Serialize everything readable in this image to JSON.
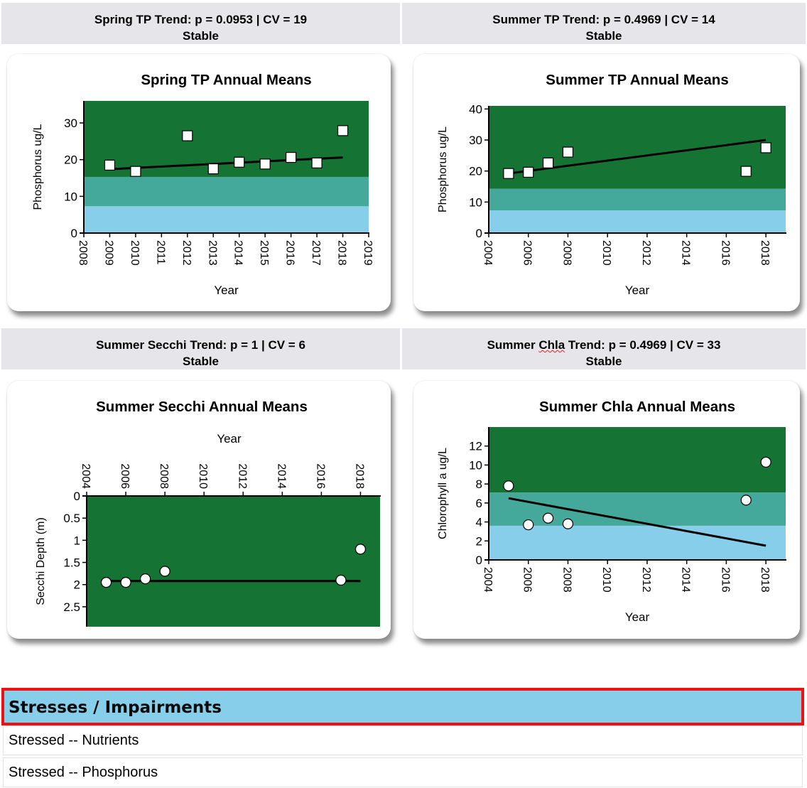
{
  "headers": {
    "spring_tp": {
      "line1": "Spring TP Trend: p = 0.0953 | CV = 19",
      "line2": "Stable"
    },
    "summer_tp": {
      "line1": "Summer TP Trend: p = 0.4969 | CV = 14",
      "line2": "Stable"
    },
    "summer_secchi": {
      "line1": "Summer Secchi Trend: p = 1 | CV = 6",
      "line2": "Stable"
    },
    "summer_chla": {
      "line1_pre": "Summer ",
      "line1_word": "Chla",
      "line1_post": " Trend: p = 0.4969 | CV = 33",
      "line2": "Stable"
    }
  },
  "colors": {
    "band_high": "#157434",
    "band_mid": "#44a99b",
    "band_low": "#87ceeb",
    "marker_fill": "#ffffff",
    "trend_line": "#000000",
    "section_bar_bg": "#87ceeb",
    "section_bar_border": "#ee1111"
  },
  "chart_data": [
    {
      "id": "spring_tp",
      "type": "scatter",
      "title": "Spring TP Annual Means",
      "xlabel": "Year",
      "ylabel": "Phosphorus ug/L",
      "marker": "square",
      "xlim": [
        2008,
        2019
      ],
      "xticks": [
        "2008",
        "2009",
        "2010",
        "2011",
        "2012",
        "2013",
        "2014",
        "2015",
        "2016",
        "2017",
        "2018",
        "2019"
      ],
      "ylim": [
        0,
        36
      ],
      "yticks": [
        "0",
        "10",
        "20",
        "30"
      ],
      "bands": [
        [
          0,
          7.3,
          "low"
        ],
        [
          7.3,
          15.3,
          "mid"
        ],
        [
          15.3,
          36,
          "high"
        ]
      ],
      "points": [
        [
          2009,
          18.5
        ],
        [
          2010,
          16.8
        ],
        [
          2012,
          26.5
        ],
        [
          2013,
          17.5
        ],
        [
          2014,
          19.3
        ],
        [
          2015,
          18.8
        ],
        [
          2016,
          20.6
        ],
        [
          2017,
          19.1
        ],
        [
          2018,
          27.9
        ]
      ],
      "trend": [
        [
          2009,
          17.4
        ],
        [
          2018,
          20.6
        ]
      ]
    },
    {
      "id": "summer_tp",
      "type": "scatter",
      "title": "Summer TP Annual Means",
      "xlabel": "Year",
      "ylabel": "Phosphorus ug/L",
      "marker": "square",
      "xlim": [
        2004,
        2019
      ],
      "xticks": [
        "2004",
        "2006",
        "2008",
        "2010",
        "2012",
        "2014",
        "2016",
        "2018"
      ],
      "ylim": [
        0,
        41
      ],
      "yticks": [
        "0",
        "10",
        "20",
        "30",
        "40"
      ],
      "bands": [
        [
          0,
          7.3,
          "low"
        ],
        [
          7.3,
          14.3,
          "mid"
        ],
        [
          14.3,
          41,
          "high"
        ]
      ],
      "points": [
        [
          2005,
          19.2
        ],
        [
          2006,
          19.6
        ],
        [
          2007,
          22.6
        ],
        [
          2008,
          26.1
        ],
        [
          2017,
          19.9
        ],
        [
          2018,
          27.5
        ]
      ],
      "trend": [
        [
          2005,
          19.2
        ],
        [
          2018,
          30.0
        ]
      ]
    },
    {
      "id": "summer_secchi",
      "type": "scatter",
      "title": "Summer Secchi Annual Means",
      "xlabel": "Year",
      "ylabel": "Secchi Depth (m)",
      "marker": "circle",
      "inverted_y": true,
      "x_axis_position": "top",
      "xlim": [
        2004,
        2019
      ],
      "xticks": [
        "2004",
        "2006",
        "2008",
        "2010",
        "2012",
        "2014",
        "2016",
        "2018"
      ],
      "ylim": [
        0,
        2.95
      ],
      "yticks": [
        "0",
        "0.5",
        "1",
        "1.5",
        "2",
        "2.5"
      ],
      "bands": [
        [
          0,
          2.95,
          "high"
        ]
      ],
      "points": [
        [
          2005,
          1.95
        ],
        [
          2006,
          1.95
        ],
        [
          2007,
          1.87
        ],
        [
          2008,
          1.7
        ],
        [
          2017,
          1.9
        ],
        [
          2018,
          1.2
        ]
      ],
      "trend": [
        [
          2005,
          1.92
        ],
        [
          2018,
          1.92
        ]
      ]
    },
    {
      "id": "summer_chla",
      "type": "scatter",
      "title": "Summer Chla Annual Means",
      "xlabel": "Year",
      "ylabel": "Chlorophyll a ug/L",
      "marker": "circle",
      "xlim": [
        2004,
        2019
      ],
      "xticks": [
        "2004",
        "2006",
        "2008",
        "2010",
        "2012",
        "2014",
        "2016",
        "2018"
      ],
      "ylim": [
        0,
        14
      ],
      "yticks": [
        "0",
        "2",
        "4",
        "6",
        "8",
        "10",
        "12"
      ],
      "bands": [
        [
          0,
          3.6,
          "low"
        ],
        [
          3.6,
          7.1,
          "mid"
        ],
        [
          7.1,
          14,
          "high"
        ]
      ],
      "points": [
        [
          2005,
          7.8
        ],
        [
          2006,
          3.7
        ],
        [
          2007,
          4.4
        ],
        [
          2008,
          3.8
        ],
        [
          2017,
          6.3
        ],
        [
          2018,
          10.3
        ]
      ],
      "trend": [
        [
          2005,
          6.5
        ],
        [
          2018,
          1.5
        ]
      ]
    }
  ],
  "section": {
    "title": "Stresses / Impairments",
    "items": [
      "Stressed -- Nutrients",
      "Stressed -- Phosphorus"
    ]
  }
}
